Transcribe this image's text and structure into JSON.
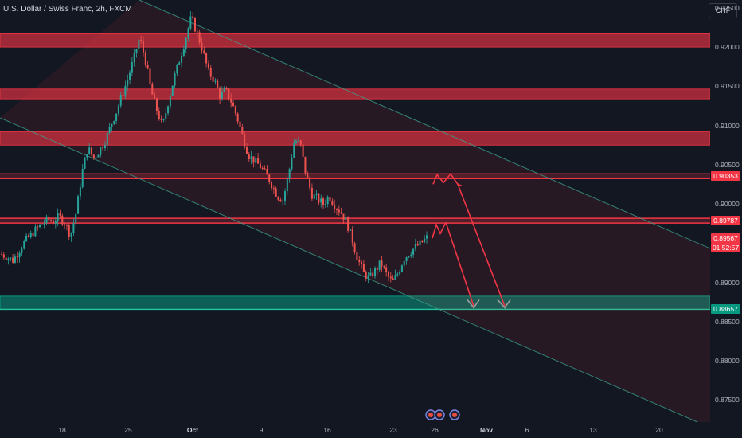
{
  "header": {
    "symbol_title": "U.S. Dollar / Swiss Franc, 2h, FXCM",
    "currency_button": "CHF"
  },
  "chart_data": {
    "type": "candlestick",
    "ylim": [
      0.8722,
      0.926
    ],
    "y_ticks": [
      "0.92500",
      "0.92000",
      "0.91500",
      "0.91000",
      "0.90500",
      "0.90000",
      "0.89500",
      "0.89000",
      "0.88500",
      "0.88000",
      "0.87500"
    ],
    "x_ticks": [
      {
        "label": "18",
        "bold": false
      },
      {
        "label": "25",
        "bold": false
      },
      {
        "label": "Oct",
        "bold": true
      },
      {
        "label": "9",
        "bold": false
      },
      {
        "label": "16",
        "bold": false
      },
      {
        "label": "23",
        "bold": false
      },
      {
        "label": "26",
        "bold": false
      },
      {
        "label": "Nov",
        "bold": true
      },
      {
        "label": "6",
        "bold": false
      },
      {
        "label": "13",
        "bold": false
      },
      {
        "label": "20",
        "bold": false
      }
    ],
    "price_path": [
      0.8936,
      0.8932,
      0.8928,
      0.894,
      0.8952,
      0.896,
      0.8968,
      0.8974,
      0.898,
      0.8978,
      0.8984,
      0.8976,
      0.896,
      0.899,
      0.904,
      0.9072,
      0.9058,
      0.9068,
      0.908,
      0.91,
      0.9118,
      0.914,
      0.916,
      0.9185,
      0.9212,
      0.9185,
      0.9145,
      0.912,
      0.9098,
      0.913,
      0.916,
      0.9185,
      0.921,
      0.9238,
      0.9218,
      0.9196,
      0.9168,
      0.9158,
      0.9138,
      0.9145,
      0.913,
      0.911,
      0.9085,
      0.9062,
      0.9055,
      0.9048,
      0.9038,
      0.9025,
      0.901,
      0.9005,
      0.904,
      0.9082,
      0.9076,
      0.9036,
      0.9012,
      0.9006,
      0.9,
      0.901,
      0.8998,
      0.899,
      0.8978,
      0.8955,
      0.893,
      0.8912,
      0.8905,
      0.8915,
      0.8925,
      0.891,
      0.89,
      0.8912,
      0.893,
      0.8938,
      0.8945,
      0.895,
      0.8957
    ],
    "resistance_zones": [
      {
        "top": 0.9217,
        "bottom": 0.92
      },
      {
        "top": 0.91465,
        "bottom": 0.9134
      },
      {
        "top": 0.9092,
        "bottom": 0.9075
      }
    ],
    "support_zone": {
      "top": 0.88825,
      "bottom": 0.88657
    },
    "resistance_lines": [
      0.90353,
      0.89787
    ],
    "price_labels": [
      {
        "text": "0.90353",
        "value": 0.90353,
        "color": "#f23645"
      },
      {
        "text": "0.89787",
        "value": 0.89787,
        "color": "#f23645"
      },
      {
        "text": "0.89567",
        "value": 0.89567,
        "color": "#f23645"
      },
      {
        "text": "01:52:57",
        "value": 0.89447,
        "color": "#f23645"
      },
      {
        "text": "0.88657",
        "value": 0.88657,
        "color": "#089981"
      }
    ],
    "projections": [
      {
        "from": 0.90353,
        "to": 0.88657
      },
      {
        "from": 0.89787,
        "to": 0.88657
      }
    ],
    "grid": false
  },
  "colors": {
    "background": "#131722",
    "bull": "#26a69a",
    "bear": "#ef5350",
    "resistance": "#f23645",
    "support": "#089981",
    "channel": "#3aa58f",
    "arrow_gray": "#9aa09d"
  }
}
